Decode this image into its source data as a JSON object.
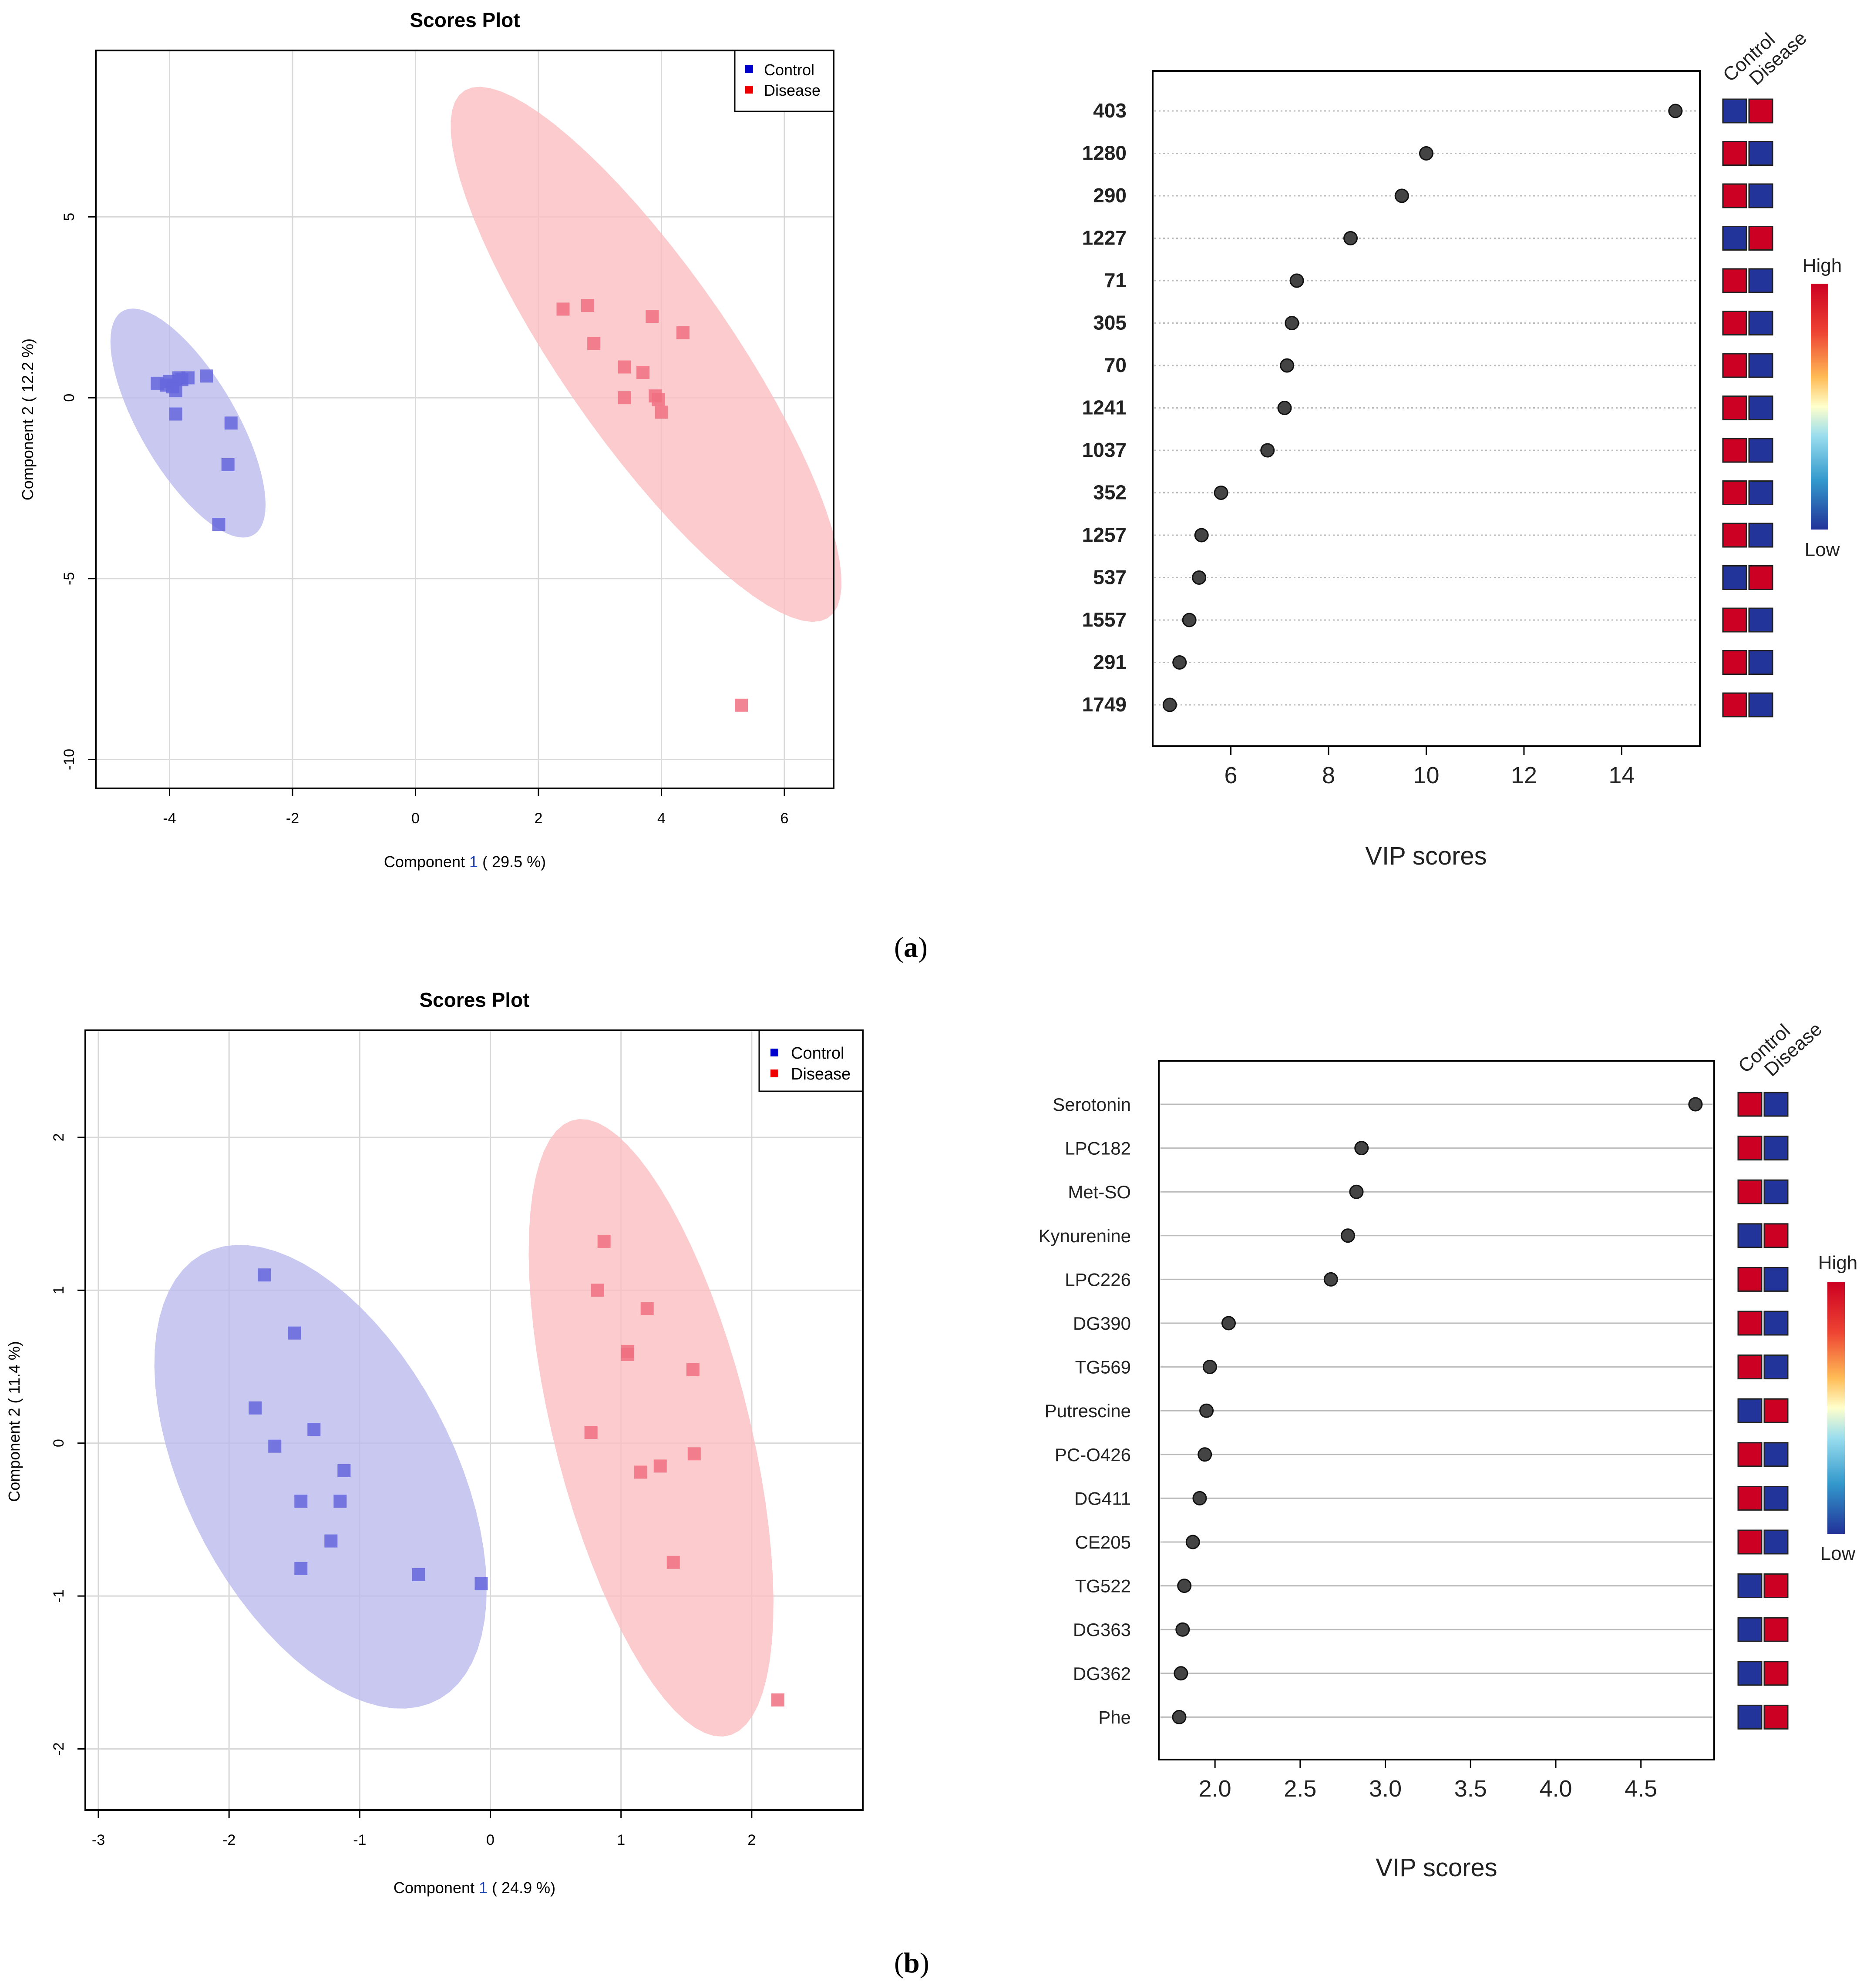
{
  "chart_data": [
    {
      "id": "a-scores",
      "type": "scatter",
      "title": "Scores Plot",
      "xlabel_prefix": "Component",
      "xlabel_num": "1",
      "xlabel_suffix": "( 29.5 %)",
      "ylabel": "Component 2 ( 12.2 %)",
      "xlim": [
        -5.2,
        6.8
      ],
      "ylim": [
        -10.8,
        9.6
      ],
      "xticks": [
        -4,
        -2,
        0,
        2,
        4,
        6
      ],
      "yticks": [
        5,
        0,
        -5,
        -10
      ],
      "xtick_labels": [
        "-4",
        "-2",
        "0",
        "2",
        "4",
        "6"
      ],
      "ytick_labels": [
        "5",
        "0",
        "-5",
        "-10"
      ],
      "grid": true,
      "legend": {
        "position": "top-right",
        "entries": [
          {
            "label": "Control",
            "color": "#0000cc"
          },
          {
            "label": "Disease",
            "color": "#ee0000"
          }
        ]
      },
      "series": [
        {
          "name": "Control",
          "color": "#6666dd",
          "ellipse": {
            "cx": -3.7,
            "cy": -0.7,
            "rx": 3.3,
            "ry": 0.85,
            "angle": -73
          },
          "x": [
            -4.2,
            -4.0,
            -3.95,
            -3.9,
            -3.85,
            -3.8,
            -3.7,
            -3.4,
            -3.9,
            -3.0,
            -3.05,
            -3.2,
            -4.05
          ],
          "y": [
            0.4,
            0.45,
            0.3,
            0.2,
            0.55,
            0.5,
            0.55,
            0.6,
            -0.45,
            -0.7,
            -1.85,
            -3.5,
            0.35
          ]
        },
        {
          "name": "Disease",
          "color": "#f07080",
          "ellipse": {
            "cx": 3.75,
            "cy": 1.2,
            "rx": 7.9,
            "ry": 1.55,
            "angle": -69
          },
          "x": [
            2.4,
            2.8,
            2.9,
            3.4,
            3.4,
            3.7,
            3.85,
            3.9,
            3.95,
            4.0,
            4.35,
            5.3
          ],
          "y": [
            2.45,
            2.55,
            1.5,
            0.85,
            0.0,
            0.7,
            2.25,
            0.05,
            -0.05,
            -0.4,
            1.8,
            -8.5
          ]
        }
      ]
    },
    {
      "id": "a-vip",
      "type": "scatter",
      "xlabel": "VIP scores",
      "xlim": [
        4.4,
        15.6
      ],
      "xticks": [
        6,
        8,
        10,
        12,
        14
      ],
      "xtick_labels": [
        "6",
        "8",
        "10",
        "12",
        "14"
      ],
      "categories": [
        "403",
        "1280",
        "290",
        "1227",
        "71",
        "305",
        "70",
        "1241",
        "1037",
        "352",
        "1257",
        "537",
        "1557",
        "291",
        "1749"
      ],
      "values": [
        15.1,
        10.0,
        9.5,
        8.45,
        7.35,
        7.25,
        7.15,
        7.1,
        6.75,
        5.8,
        5.4,
        5.35,
        5.15,
        4.95,
        4.75
      ],
      "heat_columns": [
        "Control",
        "Disease"
      ],
      "heat_high": [
        [
          "low",
          "high"
        ],
        [
          "high",
          "low"
        ],
        [
          "high",
          "low"
        ],
        [
          "low",
          "high"
        ],
        [
          "high",
          "low"
        ],
        [
          "high",
          "low"
        ],
        [
          "high",
          "low"
        ],
        [
          "high",
          "low"
        ],
        [
          "high",
          "low"
        ],
        [
          "high",
          "low"
        ],
        [
          "high",
          "low"
        ],
        [
          "low",
          "high"
        ],
        [
          "high",
          "low"
        ],
        [
          "high",
          "low"
        ],
        [
          "high",
          "low"
        ]
      ],
      "colorbar": {
        "high_label": "High",
        "low_label": "Low"
      }
    },
    {
      "id": "b-scores",
      "type": "scatter",
      "title": "Scores Plot",
      "xlabel_prefix": "Component",
      "xlabel_num": "1",
      "xlabel_suffix": "( 24.9 %)",
      "ylabel": "Component 2 ( 11.4 %)",
      "xlim": [
        -3.1,
        2.85
      ],
      "ylim": [
        -2.4,
        2.7
      ],
      "xticks": [
        -3,
        -2,
        -1,
        0,
        1,
        2
      ],
      "yticks": [
        2,
        1,
        0,
        -1,
        -2
      ],
      "xtick_labels": [
        "-3",
        "-2",
        "-1",
        "0",
        "1",
        "2"
      ],
      "ytick_labels": [
        "2",
        "1",
        "0",
        "-1",
        "-2"
      ],
      "grid": true,
      "legend": {
        "position": "top-right",
        "entries": [
          {
            "label": "Control",
            "color": "#0000cc"
          },
          {
            "label": "Disease",
            "color": "#ee0000"
          }
        ]
      },
      "series": [
        {
          "name": "Control",
          "color": "#6666dd",
          "ellipse": {
            "cx": -1.3,
            "cy": -0.22,
            "rx": 1.72,
            "ry": 0.98,
            "angle": -55
          },
          "x": [
            -1.73,
            -1.5,
            -1.8,
            -1.65,
            -1.35,
            -1.12,
            -1.45,
            -1.15,
            -1.22,
            -1.45,
            -0.55,
            -0.07
          ],
          "y": [
            1.1,
            0.72,
            0.23,
            -0.02,
            0.09,
            -0.18,
            -0.38,
            -0.38,
            -0.64,
            -0.82,
            -0.86,
            -0.92
          ]
        },
        {
          "name": "Disease",
          "color": "#f07080",
          "ellipse": {
            "cx": 1.23,
            "cy": 0.1,
            "rx": 2.1,
            "ry": 0.74,
            "angle": -73
          },
          "x": [
            0.87,
            0.82,
            1.2,
            1.05,
            1.05,
            1.55,
            0.77,
            1.56,
            1.3,
            1.15,
            1.4,
            2.2
          ],
          "y": [
            1.32,
            1.0,
            0.88,
            0.6,
            0.58,
            0.48,
            0.07,
            -0.07,
            -0.15,
            -0.19,
            -0.78,
            -1.68
          ]
        }
      ]
    },
    {
      "id": "b-vip",
      "type": "scatter",
      "xlabel": "VIP scores",
      "xlim": [
        1.67,
        4.93
      ],
      "xticks": [
        2.0,
        2.5,
        3.0,
        3.5,
        4.0,
        4.5
      ],
      "xtick_labels": [
        "2.0",
        "2.5",
        "3.0",
        "3.5",
        "4.0",
        "4.5"
      ],
      "categories": [
        "Serotonin",
        "LPC182",
        "Met-SO",
        "Kynurenine",
        "LPC226",
        "DG390",
        "TG569",
        "Putrescine",
        "PC-O426",
        "DG411",
        "CE205",
        "TG522",
        "DG363",
        "DG362",
        "Phe"
      ],
      "values": [
        4.82,
        2.86,
        2.83,
        2.78,
        2.68,
        2.08,
        1.97,
        1.95,
        1.94,
        1.91,
        1.87,
        1.82,
        1.81,
        1.8,
        1.79
      ],
      "heat_columns": [
        "Control",
        "Disease"
      ],
      "heat_high": [
        [
          "high",
          "low"
        ],
        [
          "high",
          "low"
        ],
        [
          "high",
          "low"
        ],
        [
          "low",
          "high"
        ],
        [
          "high",
          "low"
        ],
        [
          "high",
          "low"
        ],
        [
          "high",
          "low"
        ],
        [
          "low",
          "high"
        ],
        [
          "high",
          "low"
        ],
        [
          "high",
          "low"
        ],
        [
          "high",
          "low"
        ],
        [
          "low",
          "high"
        ],
        [
          "low",
          "high"
        ],
        [
          "low",
          "high"
        ],
        [
          "low",
          "high"
        ]
      ],
      "colorbar": {
        "high_label": "High",
        "low_label": "Low"
      }
    }
  ],
  "panel_labels": {
    "a": "a",
    "b": "b"
  },
  "colors": {
    "heat_high": "#cc0022",
    "heat_low": "#223399",
    "grid": "#d8d8d8",
    "point": "#444444"
  }
}
